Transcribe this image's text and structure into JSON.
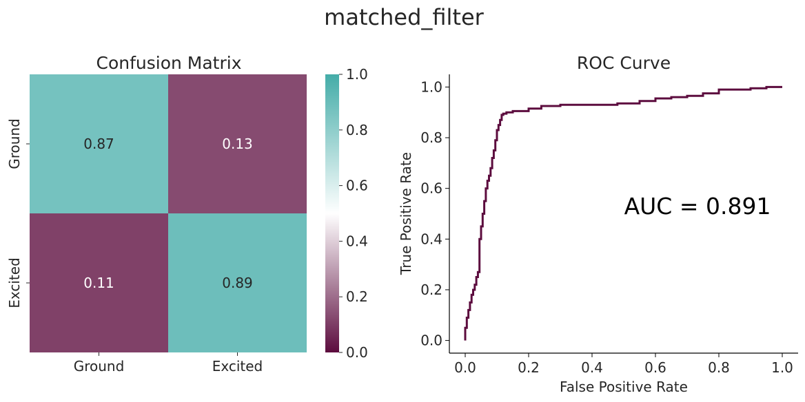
{
  "figure": {
    "suptitle": "matched_filter"
  },
  "chart_data": [
    {
      "type": "heatmap",
      "title": "Confusion Matrix",
      "row_labels": [
        "Ground",
        "Excited"
      ],
      "col_labels": [
        "Ground",
        "Excited"
      ],
      "values": [
        [
          0.87,
          0.13
        ],
        [
          0.11,
          0.89
        ]
      ],
      "value_labels": [
        [
          "0.87",
          "0.13"
        ],
        [
          "0.11",
          "0.89"
        ]
      ],
      "colorbar": {
        "range": [
          0,
          1
        ],
        "ticks": [
          0,
          0.2,
          0.4,
          0.6,
          0.8,
          1.0
        ],
        "tick_labels": [
          "0.0",
          "0.2",
          "0.4",
          "0.6",
          "0.8",
          "1.0"
        ],
        "colormap": {
          "low": "#5c0c3e",
          "mid": "#ffffff",
          "high": "#44aca8"
        }
      }
    },
    {
      "type": "line",
      "title": "ROC Curve",
      "xlabel": "False Positive Rate",
      "ylabel": "True Positive Rate",
      "xlim": [
        -0.05,
        1.05
      ],
      "ylim": [
        -0.05,
        1.05
      ],
      "xticks": [
        0,
        0.2,
        0.4,
        0.6,
        0.8,
        1.0
      ],
      "xtick_labels": [
        "0.0",
        "0.2",
        "0.4",
        "0.6",
        "0.8",
        "1.0"
      ],
      "yticks": [
        0,
        0.2,
        0.4,
        0.6,
        0.8,
        1.0
      ],
      "ytick_labels": [
        "0.0",
        "0.2",
        "0.4",
        "0.6",
        "0.8",
        "1.0"
      ],
      "annotation": "AUC = 0.891",
      "line_color": "#5c0c3e",
      "grid": false,
      "series": [
        {
          "x": [
            0,
            0,
            0.005,
            0.005,
            0.01,
            0.01,
            0.015,
            0.015,
            0.02,
            0.02,
            0.025,
            0.025,
            0.03,
            0.03,
            0.035,
            0.035,
            0.04,
            0.04,
            0.045,
            0.045,
            0.05,
            0.05,
            0.055,
            0.055,
            0.06,
            0.06,
            0.065,
            0.065,
            0.07,
            0.07,
            0.075,
            0.075,
            0.08,
            0.08,
            0.085,
            0.085,
            0.09,
            0.09,
            0.095,
            0.095,
            0.1,
            0.1,
            0.105,
            0.105,
            0.11,
            0.11,
            0.115,
            0.115,
            0.12,
            0.12,
            0.13,
            0.13,
            0.15,
            0.15,
            0.2,
            0.2,
            0.24,
            0.24,
            0.3,
            0.3,
            0.4,
            0.4,
            0.48,
            0.48,
            0.55,
            0.55,
            0.6,
            0.6,
            0.65,
            0.65,
            0.7,
            0.7,
            0.75,
            0.75,
            0.8,
            0.8,
            0.85,
            0.85,
            0.9,
            0.9,
            0.95,
            0.95,
            1.0
          ],
          "y": [
            0,
            0.05,
            0.05,
            0.09,
            0.09,
            0.12,
            0.12,
            0.15,
            0.15,
            0.18,
            0.18,
            0.2,
            0.2,
            0.22,
            0.22,
            0.25,
            0.25,
            0.27,
            0.27,
            0.4,
            0.4,
            0.45,
            0.45,
            0.5,
            0.5,
            0.55,
            0.55,
            0.6,
            0.6,
            0.63,
            0.63,
            0.65,
            0.65,
            0.68,
            0.68,
            0.72,
            0.72,
            0.75,
            0.75,
            0.79,
            0.79,
            0.83,
            0.83,
            0.85,
            0.85,
            0.87,
            0.87,
            0.89,
            0.89,
            0.895,
            0.895,
            0.9,
            0.9,
            0.905,
            0.905,
            0.915,
            0.915,
            0.925,
            0.925,
            0.93,
            0.93,
            0.93,
            0.93,
            0.935,
            0.935,
            0.945,
            0.945,
            0.955,
            0.955,
            0.96,
            0.96,
            0.965,
            0.965,
            0.975,
            0.975,
            0.99,
            0.99,
            0.99,
            0.99,
            0.995,
            0.995,
            1.0,
            1.0
          ]
        }
      ]
    }
  ]
}
